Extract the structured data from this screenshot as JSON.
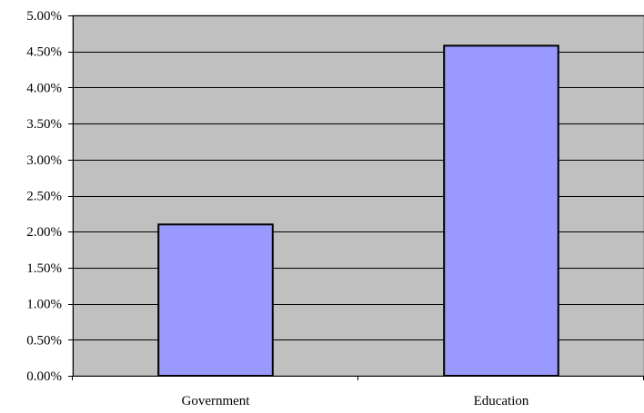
{
  "chart_data": {
    "type": "bar",
    "categories": [
      "Government",
      "Education"
    ],
    "values": [
      2.1,
      4.58
    ],
    "ylim": [
      0,
      5
    ],
    "y_ticks": [
      "0.00%",
      "0.50%",
      "1.00%",
      "1.50%",
      "2.00%",
      "2.50%",
      "3.00%",
      "3.50%",
      "4.00%",
      "4.50%",
      "5.00%"
    ],
    "grid": true,
    "colors": {
      "plot_background": "#c0c0c0",
      "bar_fill": "#9999ff",
      "bar_stroke": "#000000",
      "gridline": "#000000"
    }
  }
}
